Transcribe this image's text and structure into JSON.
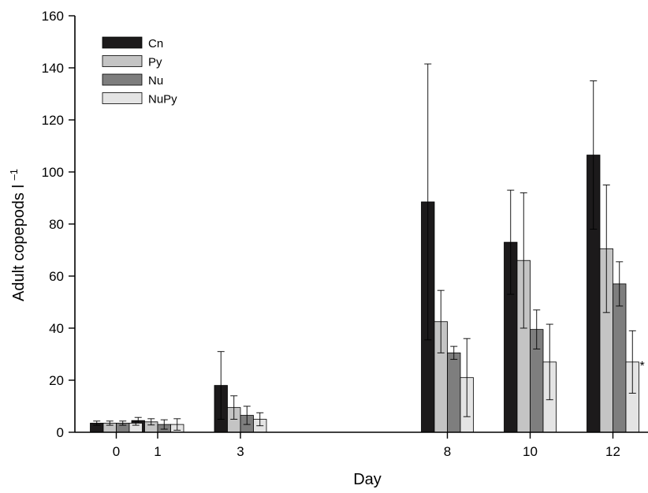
{
  "chart_data": {
    "type": "bar",
    "title": "",
    "xlabel": "Day",
    "ylabel": "Adult copepods l",
    "ylabel_superscript": "–1",
    "ylim": [
      0,
      160
    ],
    "yticks": [
      0,
      20,
      40,
      60,
      80,
      100,
      120,
      140,
      160
    ],
    "x_days": [
      0,
      1,
      3,
      8,
      10,
      12
    ],
    "categories": [
      "0",
      "1",
      "3",
      "8",
      "10",
      "12"
    ],
    "legend_position": "top-left",
    "grid": false,
    "series": [
      {
        "name": "Cn",
        "color": "#1c1a1b",
        "values": [
          3.5,
          4.5,
          18,
          88.5,
          73,
          106.5
        ],
        "errors": [
          0.8,
          1.2,
          13,
          53,
          20,
          28.5
        ]
      },
      {
        "name": "Py",
        "color": "#c4c4c4",
        "values": [
          3.5,
          4,
          9.5,
          42.5,
          66,
          70.5
        ],
        "errors": [
          0.8,
          1.2,
          4.5,
          12,
          26,
          24.5
        ]
      },
      {
        "name": "Nu",
        "color": "#7e7e7e",
        "values": [
          3.5,
          3,
          6.5,
          30.5,
          39.5,
          57
        ],
        "errors": [
          0.8,
          1.8,
          3.5,
          2.5,
          7.5,
          8.5
        ]
      },
      {
        "name": "NuPy",
        "color": "#e4e4e4",
        "values": [
          3.5,
          3,
          5,
          21,
          27,
          27
        ],
        "errors": [
          0.8,
          2.2,
          2.5,
          15,
          14.5,
          12
        ]
      }
    ],
    "annotations": [
      {
        "text": "*",
        "category": "12",
        "series": "NuPy"
      }
    ]
  }
}
